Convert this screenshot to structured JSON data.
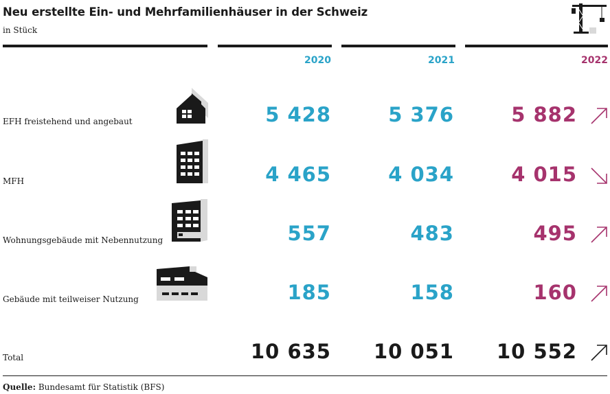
{
  "title": "Neu erstellte Ein- und Mehrfamilienhäuser in der Schweiz",
  "subtitle": "in Stück",
  "source_label": "Quelle:",
  "source_text": "Bundesamt für Statistik (BFS)",
  "colors": {
    "blue": "#2aa3c8",
    "magenta": "#a6336d",
    "black": "#1a1a1a",
    "grey": "#d9d9d9"
  },
  "chart_data": {
    "type": "table",
    "columns": [
      "2020",
      "2021",
      "2022"
    ],
    "rows": [
      {
        "label": "EFH freistehend und angebaut",
        "icon": "house-icon",
        "values": [
          "5 428",
          "5 376",
          "5 882"
        ],
        "trend": "up"
      },
      {
        "label": "MFH",
        "icon": "apartment-block-icon",
        "values": [
          "4 465",
          "4 034",
          "4 015"
        ],
        "trend": "down"
      },
      {
        "label": "Wohnungsgebäude mit Nebennutzung",
        "icon": "mixed-use-building-icon",
        "values": [
          "557",
          "483",
          "495"
        ],
        "trend": "up"
      },
      {
        "label": "Gebäude mit teilweiser Nutzung",
        "icon": "partial-use-building-icon",
        "values": [
          "185",
          "158",
          "160"
        ],
        "trend": "up"
      }
    ],
    "total": {
      "label": "Total",
      "values": [
        "10 635",
        "10 051",
        "10 552"
      ],
      "trend": "up"
    }
  }
}
